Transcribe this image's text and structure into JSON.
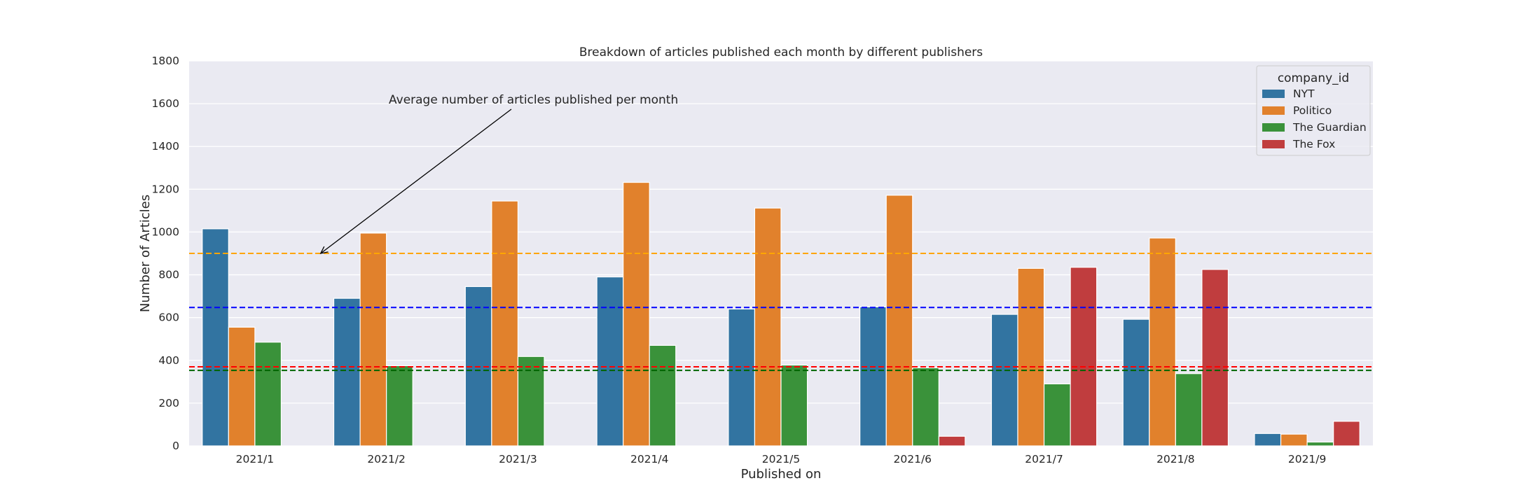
{
  "chart_data": {
    "type": "bar",
    "title": "Breakdown of articles published each month by different publishers",
    "xlabel": "Published on",
    "ylabel": "Number of Articles",
    "ylim": [
      0,
      1800
    ],
    "yticks": [
      0,
      200,
      400,
      600,
      800,
      1000,
      1200,
      1400,
      1600,
      1800
    ],
    "grid": true,
    "legend": {
      "title": "company_id",
      "placement": "top-right"
    },
    "categories": [
      "2021/1",
      "2021/2",
      "2021/3",
      "2021/4",
      "2021/5",
      "2021/6",
      "2021/7",
      "2021/8",
      "2021/9"
    ],
    "series": [
      {
        "name": "NYT",
        "color": "#3274a1",
        "values": [
          1015,
          690,
          745,
          790,
          640,
          650,
          615,
          592,
          58
        ]
      },
      {
        "name": "Politico",
        "color": "#e1812c",
        "values": [
          555,
          995,
          1145,
          1232,
          1112,
          1172,
          830,
          972,
          55
        ]
      },
      {
        "name": "The Guardian",
        "color": "#3a923a",
        "values": [
          485,
          375,
          418,
          470,
          378,
          365,
          290,
          338,
          18
        ]
      },
      {
        "name": "The Fox",
        "color": "#c03d3e",
        "values": [
          0,
          0,
          0,
          0,
          0,
          45,
          835,
          825,
          115
        ]
      }
    ],
    "reference_lines": [
      {
        "value": 900,
        "color": "#ffa500"
      },
      {
        "value": 647,
        "color": "#0000ff"
      },
      {
        "value": 370,
        "color": "#ff0000"
      },
      {
        "value": 353,
        "color": "#006400"
      }
    ],
    "annotation": {
      "text": "Average number of articles published per month",
      "target_category": "2021/2",
      "target_value": 900
    }
  }
}
